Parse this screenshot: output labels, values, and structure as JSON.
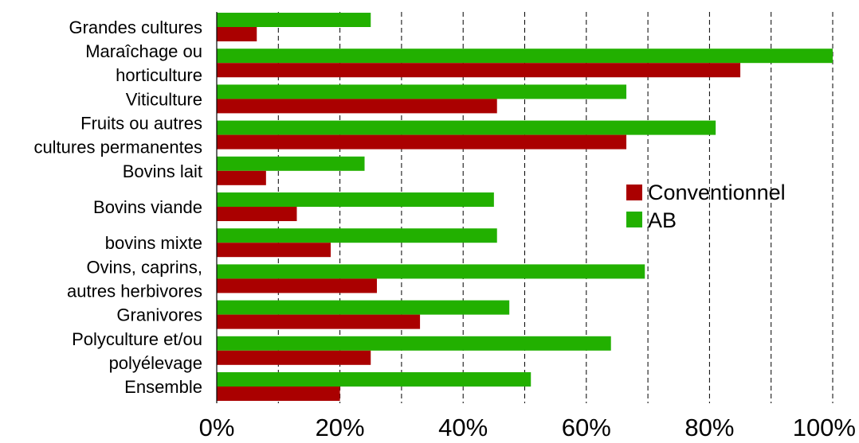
{
  "chart_data": {
    "type": "bar",
    "orientation": "horizontal",
    "categories": [
      [
        "Grandes cultures"
      ],
      [
        "Maraîchage ou",
        "horticulture"
      ],
      [
        "Viticulture"
      ],
      [
        "Fruits ou autres",
        "cultures permanentes"
      ],
      [
        "Bovins lait"
      ],
      [
        "Bovins viande"
      ],
      [
        "bovins mixte"
      ],
      [
        "Ovins, caprins,",
        "autres herbivores"
      ],
      [
        "Granivores"
      ],
      [
        "Polyculture et/ou",
        "polyélevage"
      ],
      [
        "Ensemble"
      ]
    ],
    "series": [
      {
        "name": "AB",
        "color": "#22b000",
        "values": [
          25,
          100,
          66.5,
          81,
          24,
          45,
          45.5,
          69.5,
          47.5,
          64,
          51
        ]
      },
      {
        "name": "Conventionnel",
        "color": "#aa0000",
        "values": [
          6.5,
          85,
          45.5,
          66.5,
          8,
          13,
          18.5,
          26,
          33,
          25,
          20
        ]
      }
    ],
    "xlim": [
      0,
      100
    ],
    "x_ticks": [
      "0%",
      "20%",
      "40%",
      "60%",
      "80%",
      "100%"
    ],
    "grid": "vertical dashed every 10%",
    "legend": {
      "placement": "right",
      "entries": [
        {
          "label": "Conventionnel",
          "color": "#aa0000"
        },
        {
          "label": "AB",
          "color": "#22b000"
        }
      ]
    }
  }
}
